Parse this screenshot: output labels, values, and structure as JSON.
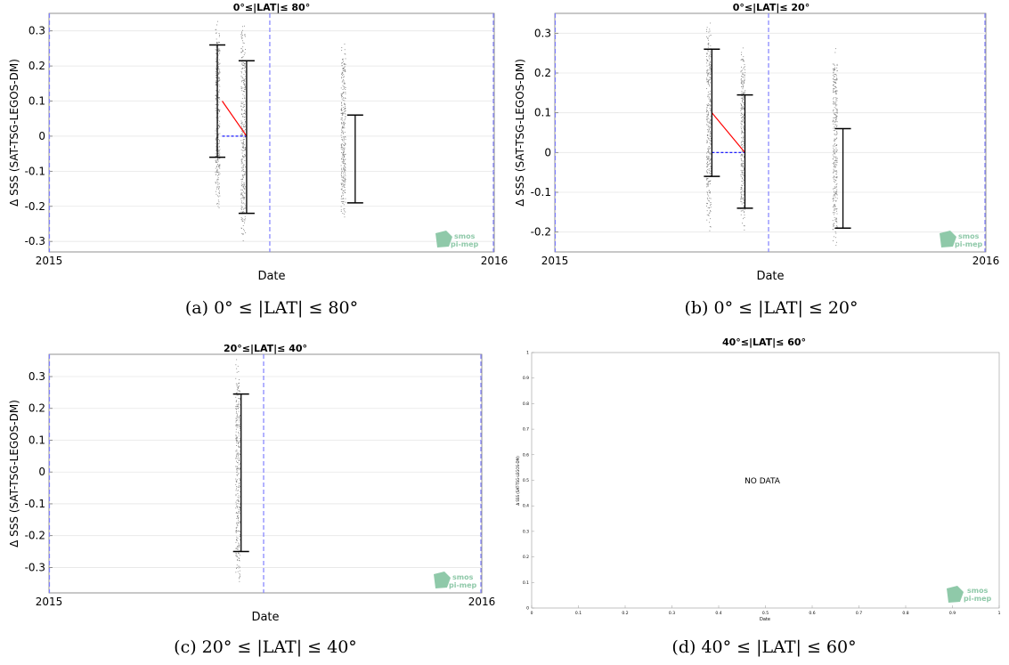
{
  "figure": {
    "panels": [
      {
        "title": "0°≤|LAT|≤ 80°",
        "caption": "(a) 0° ≤ |LAT| ≤ 80°",
        "xlabel": "Date",
        "ylabel": "Δ SSS (SAT-TSG-LEGOS-DM)",
        "logo_top": "smos",
        "logo_bottom": "pi-mep"
      },
      {
        "title": "0°≤|LAT|≤ 20°",
        "caption": "(b) 0° ≤ |LAT| ≤ 20°",
        "xlabel": "Date",
        "ylabel": "Δ SSS (SAT-TSG-LEGOS-DM)",
        "logo_top": "smos",
        "logo_bottom": "pi-mep"
      },
      {
        "title": "20°≤|LAT|≤ 40°",
        "caption": "(c) 20° ≤ |LAT| ≤ 40°",
        "xlabel": "Date",
        "ylabel": "Δ SSS (SAT-TSG-LEGOS-DM)",
        "logo_top": "smos",
        "logo_bottom": "pi-mep"
      },
      {
        "title": "40°≤|LAT|≤ 60°",
        "caption": "(d) 40° ≤ |LAT| ≤ 60°",
        "xlabel": "Date",
        "ylabel": "Δ SSS (SAT-TSG-LEGOS-DM)",
        "logo_top": "smos",
        "logo_bottom": "pi-mep",
        "annotation": "NO DATA"
      }
    ]
  },
  "chart_data": [
    {
      "type": "scatter",
      "title": "0°≤|LAT|≤ 80°",
      "xlabel": "Date",
      "ylabel": "Δ SSS (SAT-TSG-LEGOS-DM)",
      "xlim": [
        "2015-01-01",
        "2016-01-01"
      ],
      "xtick_labels": [
        "2015",
        "2016"
      ],
      "ylim": [
        -0.33,
        0.35
      ],
      "yticks": [
        -0.3,
        -0.2,
        -0.1,
        0,
        0.1,
        0.2,
        0.3
      ],
      "ytick_labels": [
        "-0.3",
        "-0.2",
        "-0.1",
        "0",
        "0.1",
        "0.2",
        "0.3"
      ],
      "grid": true,
      "point_clusters": [
        {
          "x": "2015-05-19",
          "y_min": -0.22,
          "y_max": 0.35
        },
        {
          "x": "2015-06-09",
          "y_min": -0.33,
          "y_max": 0.35
        },
        {
          "x": "2015-08-30",
          "y_min": -0.25,
          "y_max": 0.28
        }
      ],
      "error_bars": [
        {
          "x": "2015-05-19",
          "low": -0.06,
          "high": 0.26
        },
        {
          "x": "2015-06-12",
          "low": -0.22,
          "high": 0.215
        },
        {
          "x": "2015-09-09",
          "low": -0.19,
          "high": 0.06
        }
      ],
      "trend_line": {
        "x": [
          "2015-05-23",
          "2015-06-12"
        ],
        "y": [
          0.1,
          0
        ]
      },
      "zero_line": {
        "x": [
          "2015-05-23",
          "2015-06-12"
        ],
        "y": [
          0,
          0
        ]
      },
      "vlines": [
        "2015-07-01",
        "2016-01-01"
      ],
      "colors": {
        "points": "#7f7f7f",
        "error_bars": "#000000",
        "trend": "#ff0000",
        "zero_line": "#0000ff",
        "vlines": "#8080ff"
      }
    },
    {
      "type": "scatter",
      "title": "0°≤|LAT|≤ 20°",
      "xlabel": "Date",
      "ylabel": "Δ SSS (SAT-TSG-LEGOS-DM)",
      "xlim": [
        "2015-01-01",
        "2016-01-01"
      ],
      "xtick_labels": [
        "2015",
        "2016"
      ],
      "ylim": [
        -0.25,
        0.35
      ],
      "yticks": [
        -0.2,
        -0.1,
        0,
        0.1,
        0.2,
        0.3
      ],
      "ytick_labels": [
        "-0.2",
        "-0.1",
        "0",
        "0.1",
        "0.2",
        "0.3"
      ],
      "grid": true,
      "point_clusters": [
        {
          "x": "2015-05-11",
          "y_min": -0.22,
          "y_max": 0.35
        },
        {
          "x": "2015-06-09",
          "y_min": -0.2,
          "y_max": 0.27
        },
        {
          "x": "2015-08-26",
          "y_min": -0.25,
          "y_max": 0.27
        }
      ],
      "error_bars": [
        {
          "x": "2015-05-14",
          "low": -0.06,
          "high": 0.26
        },
        {
          "x": "2015-06-11",
          "low": -0.14,
          "high": 0.145
        },
        {
          "x": "2015-09-02",
          "low": -0.19,
          "high": 0.06
        }
      ],
      "trend_line": {
        "x": [
          "2015-05-14",
          "2015-06-11"
        ],
        "y": [
          0.1,
          0
        ]
      },
      "zero_line": {
        "x": [
          "2015-05-14",
          "2015-06-11"
        ],
        "y": [
          0,
          0
        ]
      },
      "vlines": [
        "2015-07-01",
        "2016-01-01"
      ],
      "colors": {
        "points": "#7f7f7f",
        "error_bars": "#000000",
        "trend": "#ff0000",
        "zero_line": "#0000ff",
        "vlines": "#8080ff"
      }
    },
    {
      "type": "scatter",
      "title": "20°≤|LAT|≤ 40°",
      "xlabel": "Date",
      "ylabel": "Δ SSS (SAT-TSG-LEGOS-DM)",
      "xlim": [
        "2015-01-01",
        "2016-01-01"
      ],
      "xtick_labels": [
        "2015",
        "2016"
      ],
      "ylim": [
        -0.38,
        0.37
      ],
      "yticks": [
        -0.3,
        -0.2,
        -0.1,
        0,
        0.1,
        0.2,
        0.3
      ],
      "ytick_labels": [
        "-0.3",
        "-0.2",
        "-0.1",
        "0",
        "0.1",
        "0.2",
        "0.3"
      ],
      "grid": true,
      "point_clusters": [
        {
          "x": "2015-06-09",
          "y_min": -0.38,
          "y_max": 0.37
        }
      ],
      "error_bars": [
        {
          "x": "2015-06-12",
          "low": -0.25,
          "high": 0.245
        }
      ],
      "vlines": [
        "2015-07-01",
        "2016-01-01"
      ],
      "colors": {
        "points": "#7f7f7f",
        "error_bars": "#000000",
        "vlines": "#8080ff"
      }
    },
    {
      "type": "scatter",
      "title": "40°≤|LAT|≤ 60°",
      "xlabel": "Date",
      "ylabel": "Δ SSS (SAT-TSG-LEGOS-DM)",
      "annotation": "NO DATA",
      "xlim": [
        0,
        1
      ],
      "ylim": [
        0,
        1
      ],
      "xticks": [
        0,
        0.1,
        0.2,
        0.3,
        0.4,
        0.5,
        0.6,
        0.7,
        0.8,
        0.9,
        1
      ],
      "xtick_labels": [
        "0",
        "0.1",
        "0.2",
        "0.3",
        "0.4",
        "0.5",
        "0.6",
        "0.7",
        "0.8",
        "0.9",
        "1"
      ],
      "yticks": [
        0,
        0.1,
        0.2,
        0.3,
        0.4,
        0.5,
        0.6,
        0.7,
        0.8,
        0.9,
        1
      ],
      "ytick_labels": [
        "0",
        "0.1",
        "0.2",
        "0.3",
        "0.4",
        "0.5",
        "0.6",
        "0.7",
        "0.8",
        "0.9",
        "1"
      ],
      "grid": false
    }
  ]
}
